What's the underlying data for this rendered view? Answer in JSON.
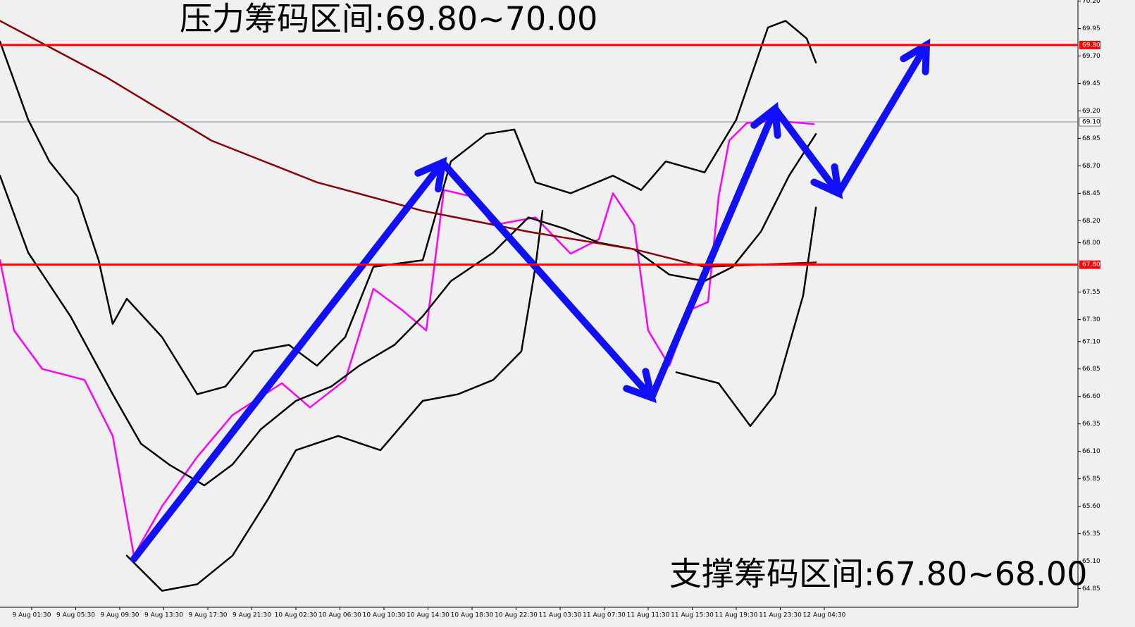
{
  "chart_data": {
    "type": "line",
    "title": "压力筹码区间:69.80~70.00",
    "annotation": "支撑筹码区间:67.80~68.00",
    "xlim": [
      -0.72,
      23.76
    ],
    "ylim": [
      64.68,
      70.21
    ],
    "xticks": [
      {
        "value": 0,
        "label": "9 Aug 01:30"
      },
      {
        "value": 1,
        "label": "9 Aug 05:30"
      },
      {
        "value": 2,
        "label": "9 Aug 09:30"
      },
      {
        "value": 3,
        "label": "9 Aug 13:30"
      },
      {
        "value": 4,
        "label": "9 Aug 17:30"
      },
      {
        "value": 5,
        "label": "9 Aug 21:30"
      },
      {
        "value": 6,
        "label": "10 Aug 02:30"
      },
      {
        "value": 7,
        "label": "10 Aug 06:30"
      },
      {
        "value": 8,
        "label": "10 Aug 10:30"
      },
      {
        "value": 9,
        "label": "10 Aug 14:30"
      },
      {
        "value": 10,
        "label": "10 Aug 18:30"
      },
      {
        "value": 11,
        "label": "10 Aug 22:30"
      },
      {
        "value": 12,
        "label": "11 Aug 03:30"
      },
      {
        "value": 13,
        "label": "11 Aug 07:30"
      },
      {
        "value": 14,
        "label": "11 Aug 11:30"
      },
      {
        "value": 15,
        "label": "11 Aug 15:30"
      },
      {
        "value": 16,
        "label": "11 Aug 19:30"
      },
      {
        "value": 17,
        "label": "11 Aug 23:30"
      },
      {
        "value": 18,
        "label": "12 Aug 04:30"
      }
    ],
    "yticks": [
      {
        "value": 70.2,
        "label": "70.20"
      },
      {
        "value": 69.95,
        "label": "69.95"
      },
      {
        "value": 69.7,
        "label": "69.70"
      },
      {
        "value": 69.45,
        "label": "69.45"
      },
      {
        "value": 69.2,
        "label": "69.20"
      },
      {
        "value": 68.95,
        "label": "68.95"
      },
      {
        "value": 68.7,
        "label": "68.70"
      },
      {
        "value": 68.45,
        "label": "68.45"
      },
      {
        "value": 68.2,
        "label": "68.20"
      },
      {
        "value": 68.0,
        "label": "68.00"
      },
      {
        "value": 67.55,
        "label": "67.55"
      },
      {
        "value": 67.3,
        "label": "67.30"
      },
      {
        "value": 67.1,
        "label": "67.10"
      },
      {
        "value": 66.85,
        "label": "66.85"
      },
      {
        "value": 66.6,
        "label": "66.60"
      },
      {
        "value": 66.35,
        "label": "66.35"
      },
      {
        "value": 66.1,
        "label": "66.10"
      },
      {
        "value": 65.85,
        "label": "65.85"
      },
      {
        "value": 65.6,
        "label": "65.60"
      },
      {
        "value": 65.35,
        "label": "65.35"
      },
      {
        "value": 65.1,
        "label": "65.10"
      },
      {
        "value": 64.85,
        "label": "64.85"
      }
    ],
    "levels": [
      {
        "value": 69.8,
        "label": "69.80",
        "color": "#ff0000"
      },
      {
        "value": 67.8,
        "label": "67.80",
        "color": "#ff0000"
      }
    ],
    "current_price": {
      "value": 69.1,
      "label": "69.10",
      "color": "#7a8aa0"
    },
    "series": [
      {
        "color": "#ff00ff",
        "width": 2.5,
        "x": [
          -0.72,
          -0.4,
          0.24,
          1.2,
          1.84,
          2.32,
          2.96,
          3.76,
          4.56,
          5.68,
          6.32,
          7.12,
          7.76,
          8.4,
          8.96,
          9.36,
          10.0,
          10.48,
          11.44,
          12.24,
          12.88,
          13.2,
          13.68,
          14.0,
          14.48,
          14.96,
          15.36,
          15.6,
          15.84,
          16.24,
          16.88,
          17.76
        ],
        "values": [
          67.84,
          67.2,
          66.85,
          66.75,
          66.24,
          65.15,
          65.6,
          66.05,
          66.43,
          66.72,
          66.5,
          66.75,
          67.58,
          67.39,
          67.2,
          68.48,
          68.42,
          68.16,
          68.23,
          67.9,
          68.03,
          68.45,
          68.16,
          67.2,
          66.88,
          67.39,
          67.46,
          68.42,
          68.93,
          69.09,
          69.11,
          69.08
        ]
      },
      {
        "color": "#000000",
        "width": 2.5,
        "x": [
          -0.72,
          -0.08,
          0.4,
          1.04,
          1.52,
          1.84,
          2.16,
          2.96,
          3.76,
          4.4,
          5.04,
          5.84,
          6.48,
          7.12,
          7.76,
          8.88,
          9.52,
          10.32,
          10.96,
          11.44,
          12.24,
          13.2,
          13.84,
          14.4,
          15.28,
          16.0,
          16.72,
          17.12,
          17.6,
          17.81
        ],
        "values": [
          69.83,
          69.12,
          68.74,
          68.42,
          67.84,
          67.26,
          67.49,
          67.14,
          66.62,
          66.69,
          67.01,
          67.07,
          66.88,
          67.14,
          67.78,
          67.84,
          68.74,
          68.99,
          69.03,
          68.55,
          68.45,
          68.61,
          68.48,
          68.74,
          68.64,
          69.12,
          69.96,
          70.02,
          69.86,
          69.64
        ]
      },
      {
        "color": "#000000",
        "width": 2.5,
        "x": [
          -0.72,
          -0.08,
          0.88,
          1.84,
          2.48,
          3.12,
          3.92,
          4.56,
          5.2,
          6.0,
          6.8,
          7.44,
          8.24,
          8.88,
          9.52,
          10.48,
          11.28,
          12.08,
          12.88,
          13.68,
          14.48,
          15.28,
          15.92,
          16.56,
          17.2,
          17.81
        ],
        "values": [
          68.61,
          67.91,
          67.33,
          66.62,
          66.17,
          65.98,
          65.79,
          65.98,
          66.3,
          66.56,
          66.69,
          66.88,
          67.07,
          67.33,
          67.65,
          67.91,
          68.23,
          68.13,
          68.0,
          67.94,
          67.71,
          67.65,
          67.78,
          68.1,
          68.61,
          68.99
        ]
      },
      {
        "color": "#000000",
        "width": 2.5,
        "x": [
          2.16,
          2.96,
          3.76,
          4.56,
          5.36,
          6.0,
          6.96,
          7.92,
          8.88,
          9.68,
          10.48,
          11.12,
          11.44,
          11.6,
          13.0,
          14.64,
          15.6,
          16.32,
          16.88,
          17.52,
          17.81
        ],
        "values": [
          65.15,
          64.83,
          64.89,
          65.15,
          65.66,
          66.11,
          66.24,
          66.11,
          66.56,
          66.62,
          66.75,
          67.01,
          67.78,
          68.29,
          null,
          66.82,
          66.72,
          66.33,
          66.62,
          67.52,
          68.32
        ]
      },
      {
        "color": "#8b0000",
        "width": 2.5,
        "x": [
          -0.72,
          1.68,
          4.08,
          6.48,
          8.88,
          11.28,
          13.68,
          15.28,
          17.81
        ],
        "values": [
          70.02,
          69.51,
          68.93,
          68.55,
          68.29,
          68.1,
          67.94,
          67.78,
          67.82
        ]
      },
      {
        "color": "#1010ff",
        "width": 10,
        "arrow": true,
        "x": [
          2.32,
          9.33,
          14.08,
          16.88,
          18.32,
          20.32
        ],
        "values": [
          65.12,
          68.73,
          66.59,
          69.22,
          68.45,
          69.8
        ]
      }
    ]
  }
}
